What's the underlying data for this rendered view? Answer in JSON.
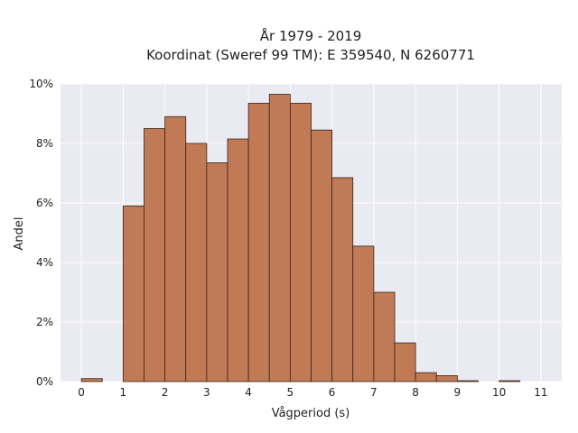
{
  "chart_data": {
    "type": "bar",
    "title_lines": [
      "År 1979 - 2019",
      "Koordinat (Sweref 99 TM): E 359540, N 6260771"
    ],
    "xlabel": "Vågperiod (s)",
    "ylabel": "Andel",
    "xlim": [
      -0.5,
      11.5
    ],
    "ylim": [
      0,
      10
    ],
    "bin_width": 0.5,
    "x_ticks": [
      0,
      1,
      2,
      3,
      4,
      5,
      6,
      7,
      8,
      9,
      10,
      11
    ],
    "y_ticks": [
      0,
      2,
      4,
      6,
      8,
      10
    ],
    "y_tick_labels": [
      "0%",
      "2%",
      "4%",
      "6%",
      "8%",
      "10%"
    ],
    "bins": [
      {
        "start": 0.0,
        "value": 0.1
      },
      {
        "start": 0.5,
        "value": 0.0
      },
      {
        "start": 1.0,
        "value": 5.9
      },
      {
        "start": 1.5,
        "value": 8.5
      },
      {
        "start": 2.0,
        "value": 8.9
      },
      {
        "start": 2.5,
        "value": 8.0
      },
      {
        "start": 3.0,
        "value": 7.35
      },
      {
        "start": 3.5,
        "value": 8.15
      },
      {
        "start": 4.0,
        "value": 9.35
      },
      {
        "start": 4.5,
        "value": 9.65
      },
      {
        "start": 5.0,
        "value": 9.35
      },
      {
        "start": 5.5,
        "value": 8.45
      },
      {
        "start": 6.0,
        "value": 6.85
      },
      {
        "start": 6.5,
        "value": 4.55
      },
      {
        "start": 7.0,
        "value": 3.0
      },
      {
        "start": 7.5,
        "value": 1.3
      },
      {
        "start": 8.0,
        "value": 0.3
      },
      {
        "start": 8.5,
        "value": 0.2
      },
      {
        "start": 9.0,
        "value": 0.03
      },
      {
        "start": 9.5,
        "value": 0.0
      },
      {
        "start": 10.0,
        "value": 0.03
      },
      {
        "start": 10.5,
        "value": 0.0
      }
    ],
    "grid": true,
    "colors": {
      "bar_fill": "#c07a55",
      "bar_edge": "#3a2417",
      "plot_bg": "#eaeaf2"
    }
  }
}
